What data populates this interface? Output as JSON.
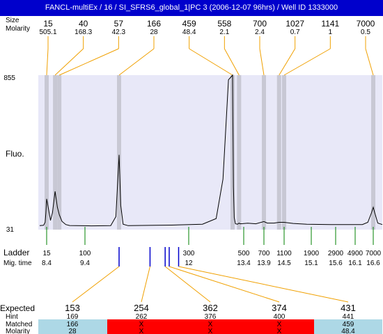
{
  "window_title": "FANCL-multiEx / 16 / SI_SFRS6_global_1|PC 3 (2006-12-07 96hrs) / Well ID 1333000",
  "labels": {
    "peaks_size": "Size",
    "peaks_molarity": "Molarity",
    "fluo": "Fluo.",
    "ladder": "Ladder",
    "mig_time": "Mig. time",
    "expected": "Expected",
    "hint": "Hint",
    "matched": "Matched",
    "molarity": "Molarity"
  },
  "colors": {
    "plot_background": "#e8e8f8",
    "peak_band": "#c8c8d4",
    "peak_connector": "#f0a000",
    "ladder_tick": "#008000",
    "expected_marker": "#0000cc",
    "trace": "#000000",
    "expected_highlight": "#ff0000",
    "matched_ok": "#add8e6",
    "matched_missing": "#ff0000"
  },
  "chart_data": {
    "type": "line",
    "y_axis": {
      "max_label": "855",
      "min_label": "31",
      "range": [
        31,
        855
      ]
    },
    "peaks": [
      {
        "size": "15",
        "molarity": "505.1",
        "time": 8.4
      },
      {
        "size": "40",
        "molarity": "168.3",
        "time": 8.62
      },
      {
        "size": "57",
        "molarity": "42.3",
        "time": 8.73
      },
      {
        "size": "166",
        "molarity": "28",
        "time": 9.93
      },
      {
        "size": "459",
        "molarity": "48.4",
        "time": 12.32
      },
      {
        "size": "558",
        "molarity": "2.1",
        "time": 12.95
      },
      {
        "size": "700",
        "molarity": "2.4",
        "time": 13.9
      },
      {
        "size": "1027",
        "molarity": "0.7",
        "time": 14.35
      },
      {
        "size": "1141",
        "molarity": "1",
        "time": 14.5
      },
      {
        "size": "7000",
        "molarity": "0.5",
        "time": 16.6
      }
    ],
    "ladder": [
      {
        "size": "15",
        "time": "8.4"
      },
      {
        "size": "100",
        "time": "9.4"
      },
      {
        "size": "300",
        "time": "12"
      },
      {
        "size": "500",
        "time": "13.4"
      },
      {
        "size": "700",
        "time": "13.9"
      },
      {
        "size": "1100",
        "time": "14.5"
      },
      {
        "size": "1900",
        "time": "15.1"
      },
      {
        "size": "2900",
        "time": "15.6"
      },
      {
        "size": "4900",
        "time": "16.1"
      },
      {
        "size": "7000",
        "time": "16.6"
      }
    ],
    "expected_markers_time": [
      9.93,
      10.85,
      11.3,
      11.42,
      11.7
    ],
    "trace": [
      [
        7.95,
        52
      ],
      [
        8.2,
        54
      ],
      [
        8.3,
        70
      ],
      [
        8.35,
        120
      ],
      [
        8.4,
        195
      ],
      [
        8.45,
        140
      ],
      [
        8.5,
        80
      ],
      [
        8.55,
        120
      ],
      [
        8.62,
        235
      ],
      [
        8.68,
        150
      ],
      [
        8.73,
        110
      ],
      [
        8.8,
        75
      ],
      [
        8.9,
        58
      ],
      [
        9.0,
        53
      ],
      [
        9.5,
        51
      ],
      [
        9.8,
        52
      ],
      [
        9.88,
        100
      ],
      [
        9.93,
        430
      ],
      [
        9.98,
        160
      ],
      [
        10.05,
        60
      ],
      [
        10.2,
        52
      ],
      [
        11.0,
        54
      ],
      [
        11.5,
        55
      ],
      [
        12.1,
        60
      ],
      [
        12.2,
        90
      ],
      [
        12.25,
        300
      ],
      [
        12.29,
        830
      ],
      [
        12.32,
        855
      ],
      [
        12.35,
        640
      ],
      [
        12.4,
        260
      ],
      [
        12.48,
        95
      ],
      [
        12.6,
        62
      ],
      [
        12.8,
        60
      ],
      [
        12.95,
        66
      ],
      [
        13.05,
        62
      ],
      [
        13.3,
        63
      ],
      [
        13.5,
        65
      ],
      [
        13.7,
        62
      ],
      [
        13.9,
        74
      ],
      [
        14.0,
        66
      ],
      [
        14.2,
        66
      ],
      [
        14.35,
        70
      ],
      [
        14.5,
        70
      ],
      [
        14.7,
        64
      ],
      [
        15.0,
        60
      ],
      [
        15.5,
        58
      ],
      [
        16.0,
        58
      ],
      [
        16.3,
        58
      ],
      [
        16.45,
        70
      ],
      [
        16.55,
        120
      ],
      [
        16.6,
        150
      ],
      [
        16.65,
        120
      ],
      [
        16.75,
        66
      ],
      [
        16.9,
        58
      ]
    ]
  },
  "expected_table": {
    "columns": [
      {
        "expected": "153",
        "highlight": true,
        "hint": "169",
        "matched": "166",
        "molarity": "28",
        "status": "ok"
      },
      {
        "expected": "254",
        "highlight": false,
        "hint": "262",
        "matched": "X",
        "molarity": "X",
        "status": "missing"
      },
      {
        "expected": "362",
        "highlight": false,
        "hint": "376",
        "matched": "X",
        "molarity": "X",
        "status": "missing"
      },
      {
        "expected": "374",
        "highlight": false,
        "hint": "400",
        "matched": "X",
        "molarity": "X",
        "status": "missing"
      },
      {
        "expected": "431",
        "highlight": true,
        "hint": "441",
        "matched": "459",
        "molarity": "48.4",
        "status": "ok"
      }
    ]
  }
}
